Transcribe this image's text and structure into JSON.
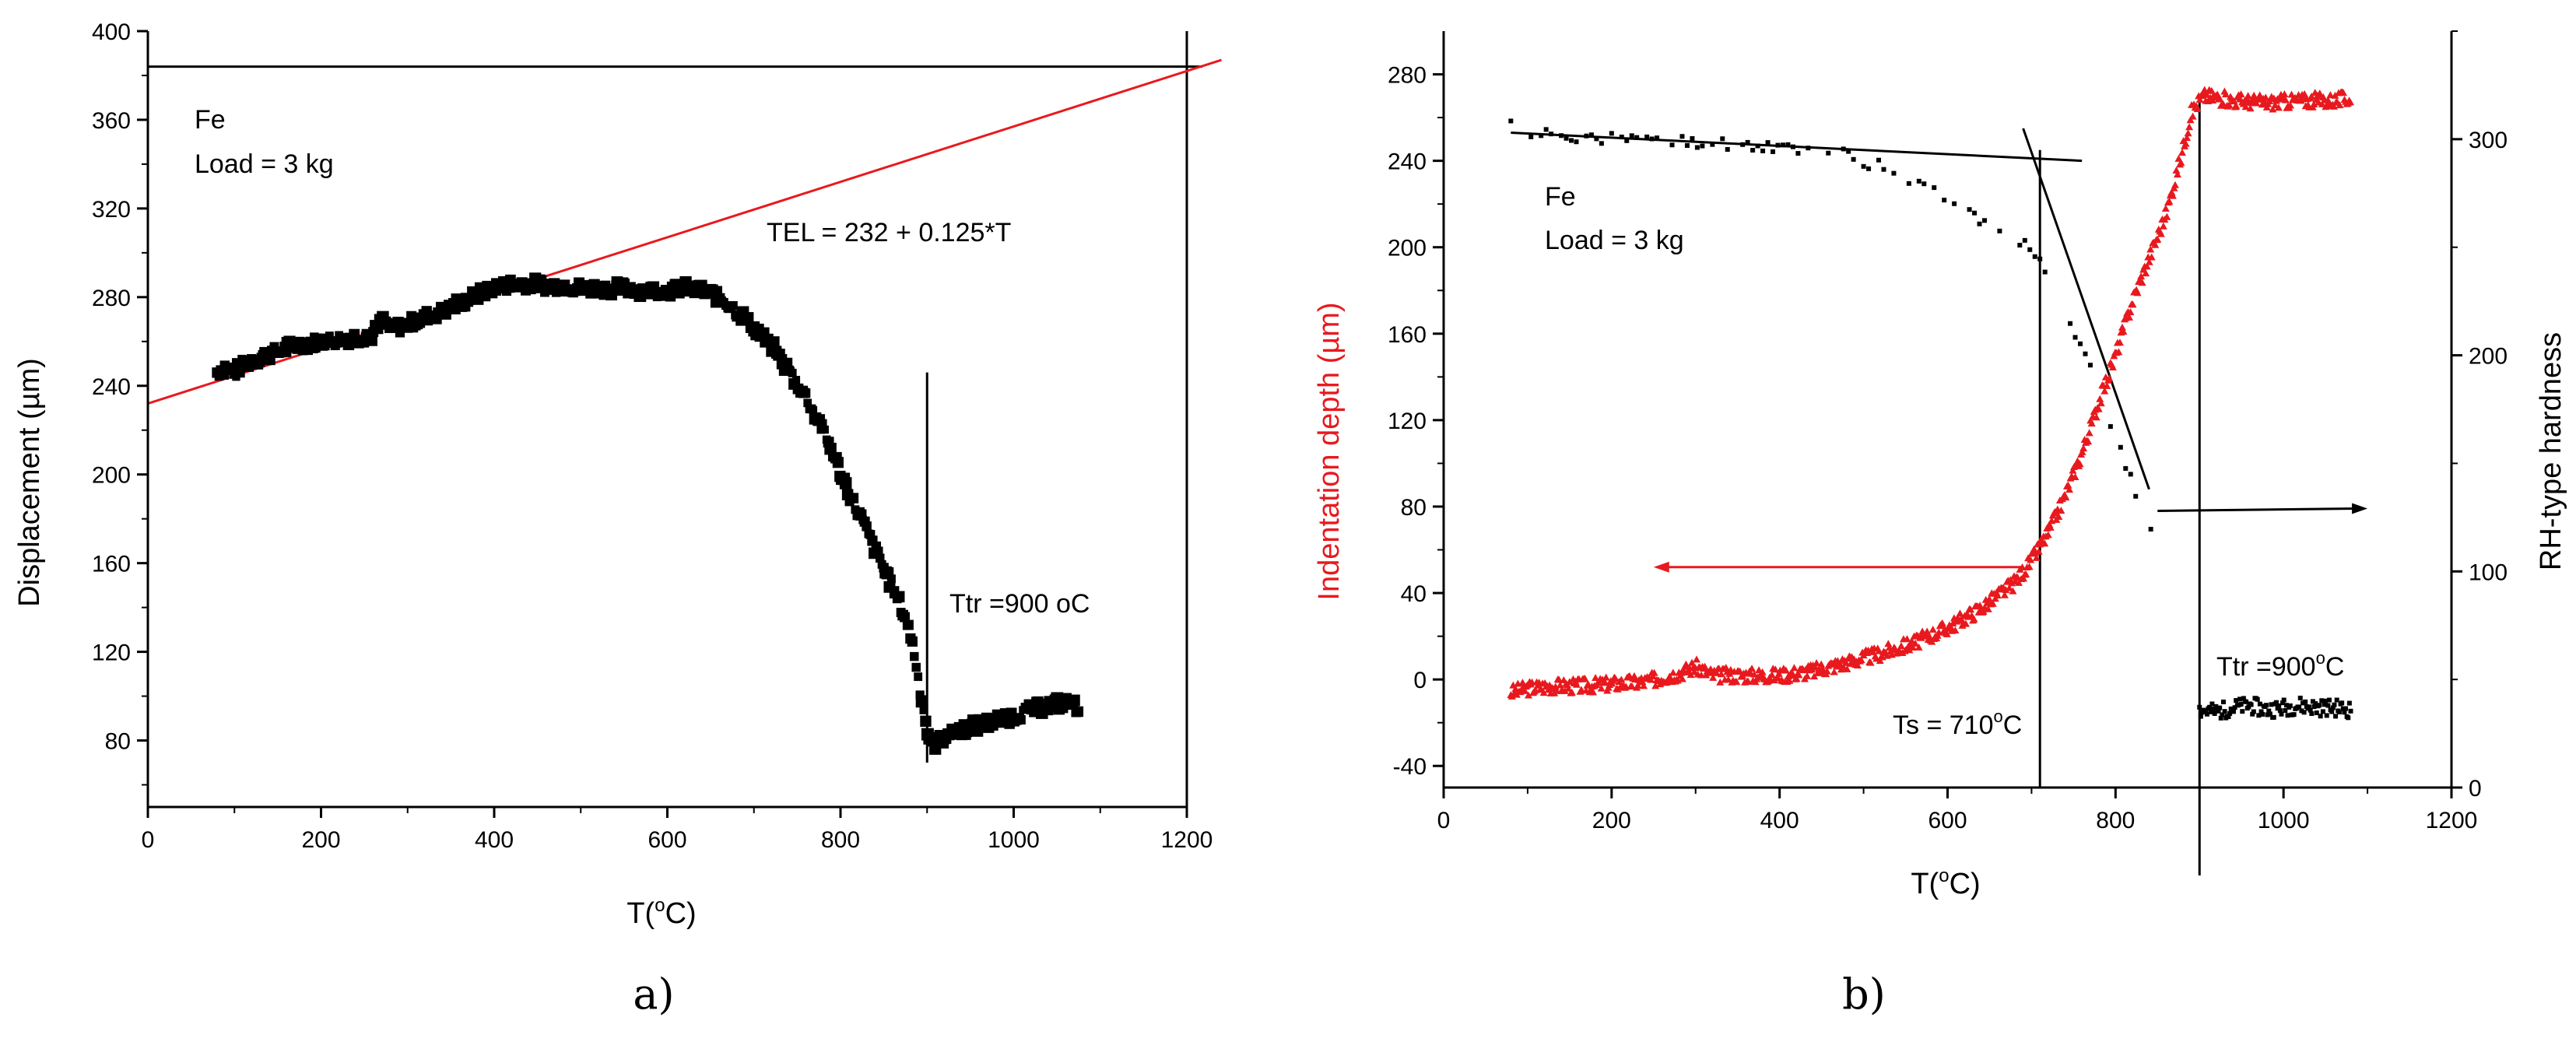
{
  "chart_data": [
    {
      "panel_label": "a)",
      "type": "scatter",
      "xlabel_base": "T(",
      "xlabel_sup": "o",
      "xlabel_end": "C)",
      "ylabel": "Displacement (µm)",
      "xlim": [
        0,
        1200
      ],
      "ylim": [
        50,
        400
      ],
      "xticks": [
        0,
        200,
        400,
        600,
        800,
        1000,
        1200
      ],
      "yticks": [
        80,
        120,
        160,
        200,
        240,
        280,
        320,
        360,
        400
      ],
      "xtick_labels": [
        "0",
        "200",
        "400",
        "600",
        "800",
        "1000",
        "1200"
      ],
      "ytick_labels": [
        "80",
        "120",
        "160",
        "200",
        "240",
        "280",
        "320",
        "360",
        "400"
      ],
      "annotations": {
        "material": "Fe",
        "load": "Load = 3 kg",
        "fit": "TEL = 232 + 0.125*T",
        "transition": "Ttr =900 oC"
      },
      "colors": {
        "data": "#000000",
        "fit_line": "#e8191e",
        "ref_lines": "#000000"
      },
      "reference_lines": {
        "horizontal_y": 384,
        "vertical_x_full": 1200,
        "vertical_x_partial": 900,
        "partial_top_y": 246
      },
      "fit_line": {
        "intercept": 232,
        "slope": 0.125,
        "x_range": [
          0,
          1240
        ]
      },
      "series": [
        {
          "marker": "square",
          "x": [
            80,
            90,
            100,
            110,
            120,
            140,
            160,
            180,
            200,
            220,
            240,
            260,
            270,
            280,
            300,
            320,
            340,
            360,
            380,
            400,
            420,
            440,
            460,
            480,
            500,
            520,
            540,
            560,
            580,
            600,
            620,
            640,
            660,
            680,
            700,
            720,
            740,
            760,
            780,
            800,
            810,
            820,
            830,
            840,
            850,
            860,
            870,
            880,
            885,
            890,
            895,
            900,
            905,
            910,
            920,
            940,
            960,
            980,
            1000,
            1020,
            1040,
            1060,
            1075
          ],
          "y": [
            246,
            249,
            245,
            250,
            252,
            254,
            257,
            259,
            260,
            261,
            262,
            263,
            270,
            265,
            268,
            271,
            274,
            277,
            281,
            284,
            286,
            286,
            285,
            285,
            284,
            284,
            284,
            284,
            283,
            283,
            284,
            283,
            280,
            274,
            266,
            258,
            247,
            235,
            220,
            201,
            191,
            183,
            175,
            166,
            158,
            149,
            140,
            129,
            120,
            107,
            97,
            85,
            78,
            79,
            82,
            85,
            87,
            89,
            91,
            94,
            96,
            97,
            95
          ]
        }
      ]
    },
    {
      "panel_label": "b)",
      "type": "scatter",
      "xlabel_base": "T(",
      "xlabel_sup": "o",
      "xlabel_end": "C)",
      "ylabel": "Indentation depth  (µm)",
      "ylabel_right": "RH-type hardness",
      "xlim": [
        0,
        1200
      ],
      "ylim": [
        -50,
        300
      ],
      "ylim_right": [
        0,
        350
      ],
      "xticks": [
        0,
        200,
        400,
        600,
        800,
        1000,
        1200
      ],
      "yticks": [
        -40,
        0,
        40,
        80,
        120,
        160,
        200,
        240,
        280
      ],
      "yticks_right": [
        0,
        100,
        200,
        300
      ],
      "xtick_labels": [
        "0",
        "200",
        "400",
        "600",
        "800",
        "1000",
        "1200"
      ],
      "ytick_labels": [
        "-40",
        "0",
        "40",
        "80",
        "120",
        "160",
        "200",
        "240",
        "280"
      ],
      "ytick_labels_right": [
        "0",
        "100",
        "200",
        "300"
      ],
      "annotations": {
        "material": "Fe",
        "load": "Load = 3 kg",
        "ts_label": "Ts = 710",
        "ts_sup": "o",
        "ts_unit": "C",
        "ttr_label": "Ttr =900",
        "ttr_sup": "o",
        "ttr_unit": "C"
      },
      "colors": {
        "indentation": "#e8191e",
        "hardness": "#000000",
        "axis_left_label": "#e8191e"
      },
      "reference_lines": {
        "vertical_x": [
          710,
          900
        ]
      },
      "arrows": [
        {
          "series": "Indentation depth",
          "from_x": 690,
          "to_x": 250,
          "y": 52
        },
        {
          "series": "RH-type hardness",
          "from_x": 850,
          "to_x": 1100,
          "y": 128
        }
      ],
      "series": [
        {
          "name": "Indentation depth",
          "axis": "left",
          "x": [
            80,
            100,
            130,
            160,
            200,
            240,
            280,
            300,
            320,
            360,
            400,
            440,
            480,
            520,
            560,
            600,
            640,
            680,
            700,
            720,
            740,
            760,
            780,
            800,
            820,
            840,
            860,
            880,
            890,
            900,
            905,
            910,
            940,
            980,
            1020,
            1060,
            1080
          ],
          "y": [
            -6,
            -4,
            -3,
            -3,
            -2,
            -1,
            3,
            6,
            2,
            2,
            2,
            4,
            8,
            12,
            17,
            24,
            33,
            45,
            55,
            68,
            85,
            105,
            128,
            150,
            175,
            195,
            215,
            245,
            262,
            268,
            270,
            270,
            268,
            267,
            268,
            268,
            269
          ]
        },
        {
          "name": "RH-type hardness",
          "axis": "right",
          "x": [
            80,
            100,
            140,
            180,
            220,
            260,
            300,
            340,
            380,
            420,
            460,
            500,
            540,
            560,
            600,
            640,
            660,
            700,
            720,
            740,
            760,
            780,
            800,
            820,
            830,
            840,
            850,
            860,
            900,
            920,
            940,
            960,
            980,
            1000,
            1020,
            1040,
            1060,
            1080
          ],
          "y": [
            306,
            303,
            302,
            301,
            300,
            299,
            299,
            298,
            297,
            296,
            295,
            290,
            285,
            280,
            272,
            262,
            258,
            250,
            238,
            222,
            203,
            185,
            162,
            140,
            130,
            122,
            118,
            112,
            36,
            35,
            37,
            38,
            36,
            37,
            38,
            37,
            37,
            36
          ]
        }
      ]
    }
  ]
}
